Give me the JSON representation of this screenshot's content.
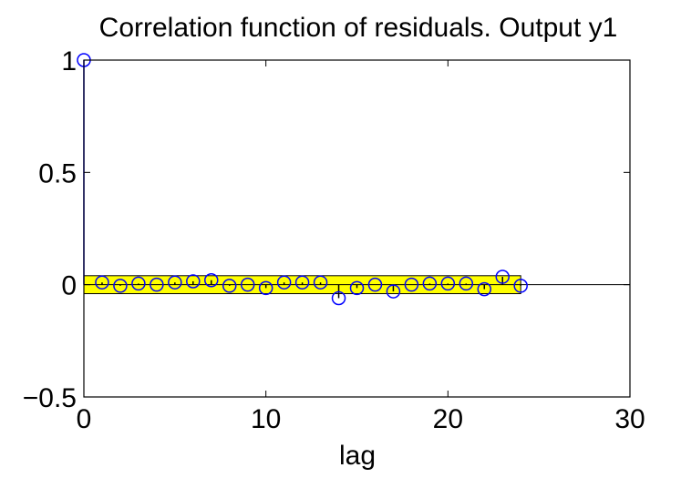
{
  "chart_data": {
    "type": "scatter",
    "title": "Correlation function of residuals. Output y1",
    "xlabel": "lag",
    "ylabel": "",
    "xlim": [
      0,
      30
    ],
    "ylim": [
      -0.5,
      1
    ],
    "xticks": [
      0,
      10,
      20,
      30
    ],
    "xtick_labels": [
      "0",
      "10",
      "20",
      "30"
    ],
    "yticks": [
      -0.5,
      0,
      0.5,
      1
    ],
    "ytick_labels": [
      "−0.5",
      "0",
      "0.5",
      "1"
    ],
    "grid": false,
    "confidence_band": {
      "x_range": [
        0,
        24
      ],
      "y_range": [
        -0.04,
        0.04
      ],
      "color": "#ffff00"
    },
    "zero_line": {
      "x_range": [
        0,
        30
      ],
      "y": 0
    },
    "marker_color": "#0000ff",
    "series": [
      {
        "x": [
          0,
          1,
          2,
          3,
          4,
          5,
          6,
          7,
          8,
          9,
          10,
          11,
          12,
          13,
          14,
          15,
          16,
          17,
          18,
          19,
          20,
          21,
          22,
          23,
          24
        ],
        "values": [
          1.0,
          0.01,
          -0.005,
          0.005,
          0.0,
          0.01,
          0.015,
          0.02,
          -0.005,
          0.0,
          -0.015,
          0.01,
          0.01,
          0.01,
          -0.06,
          -0.015,
          0.0,
          -0.03,
          0.0,
          0.005,
          0.005,
          0.005,
          -0.02,
          0.035,
          -0.005
        ]
      }
    ]
  }
}
